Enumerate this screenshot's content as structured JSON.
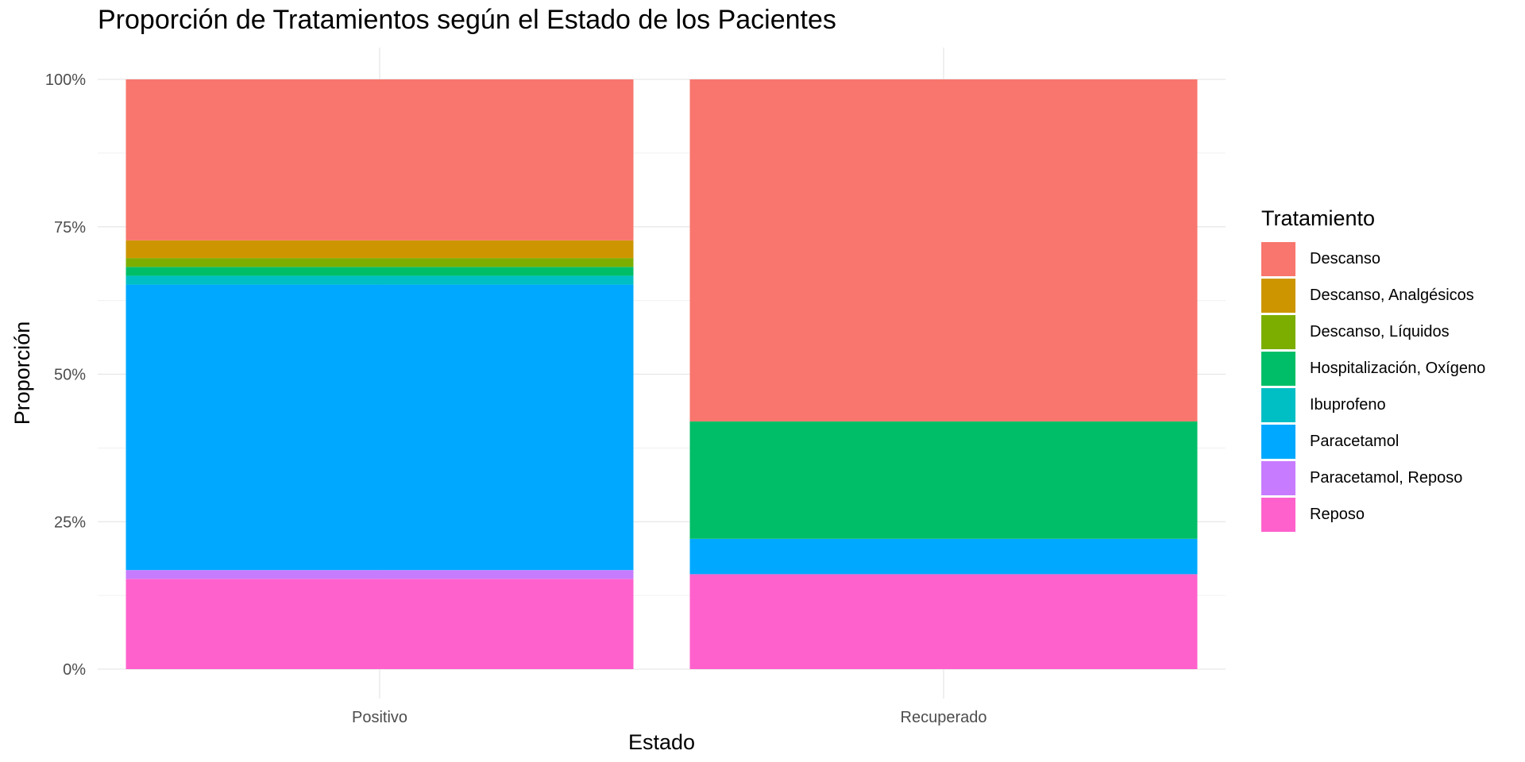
{
  "chart_data": {
    "type": "bar",
    "stacked": true,
    "title": "Proporción de Tratamientos según el Estado de los Pacientes",
    "xlabel": "Estado",
    "ylabel": "Proporción",
    "ylim": [
      0,
      1
    ],
    "yticks": [
      "0%",
      "25%",
      "50%",
      "75%",
      "100%"
    ],
    "grid": true,
    "legend_position": "right",
    "legend_title": "Tratamiento",
    "categories": [
      "Positivo",
      "Recuperado"
    ],
    "series": [
      {
        "name": "Reposo",
        "color": "#FF61CC",
        "values": [
          0.153,
          0.161
        ]
      },
      {
        "name": "Paracetamol, Reposo",
        "color": "#C77CFF",
        "values": [
          0.015,
          0.0
        ]
      },
      {
        "name": "Paracetamol",
        "color": "#00A9FF",
        "values": [
          0.484,
          0.06
        ]
      },
      {
        "name": "Ibuprofeno",
        "color": "#00BFC4",
        "values": [
          0.015,
          0.0
        ]
      },
      {
        "name": "Hospitalización, Oxígeno",
        "color": "#00BE67",
        "values": [
          0.015,
          0.199
        ]
      },
      {
        "name": "Descanso, Líquidos",
        "color": "#7CAE00",
        "values": [
          0.015,
          0.0
        ]
      },
      {
        "name": "Descanso, Analgésicos",
        "color": "#CD9600",
        "values": [
          0.03,
          0.0
        ]
      },
      {
        "name": "Descanso",
        "color": "#F8766D",
        "values": [
          0.273,
          0.58
        ]
      }
    ]
  }
}
